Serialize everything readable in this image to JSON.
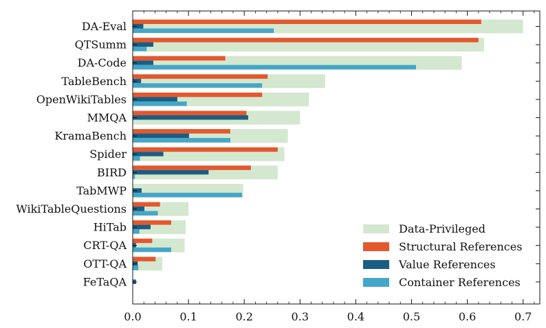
{
  "chart_data": {
    "type": "bar",
    "orientation": "horizontal",
    "categories": [
      "DA-Eval",
      "QTSumm",
      "DA-Code",
      "TableBench",
      "OpenWikiTables",
      "MMQA",
      "KramaBench",
      "Spider",
      "BIRD",
      "TabMWP",
      "WikiTableQuestions",
      "HiTab",
      "CRT-QA",
      "OTT-QA",
      "FeTaQA"
    ],
    "series": [
      {
        "name": "Data-Privileged",
        "color": "#d3e8cf",
        "values": [
          0.7,
          0.63,
          0.59,
          0.345,
          0.316,
          0.3,
          0.278,
          0.272,
          0.26,
          0.198,
          0.1,
          0.095,
          0.093,
          0.053,
          0.0
        ]
      },
      {
        "name": "Structural References",
        "color": "#e4582e",
        "values": [
          0.625,
          0.62,
          0.166,
          0.242,
          0.232,
          0.204,
          0.175,
          0.26,
          0.212,
          0.0,
          0.049,
          0.069,
          0.035,
          0.041,
          0.0
        ]
      },
      {
        "name": "Value References",
        "color": "#1b5d83",
        "values": [
          0.019,
          0.037,
          0.037,
          0.015,
          0.08,
          0.207,
          0.101,
          0.055,
          0.136,
          0.016,
          0.021,
          0.032,
          0.006,
          0.009,
          0.006
        ]
      },
      {
        "name": "Container References",
        "color": "#45a6c8",
        "values": [
          0.253,
          0.025,
          0.508,
          0.232,
          0.097,
          0.0,
          0.175,
          0.013,
          0.004,
          0.196,
          0.045,
          0.012,
          0.069,
          0.01,
          0.0
        ]
      }
    ],
    "xlim": [
      0,
      0.73
    ],
    "xticks": [
      "0.0",
      "0.1",
      "0.2",
      "0.3",
      "0.4",
      "0.5",
      "0.6",
      "0.7"
    ],
    "xtick_values": [
      0,
      0.1,
      0.2,
      0.3,
      0.4,
      0.5,
      0.6,
      0.7
    ],
    "title": "",
    "xlabel": "",
    "ylabel": "",
    "grid": false,
    "legend_position": "lower-right"
  }
}
